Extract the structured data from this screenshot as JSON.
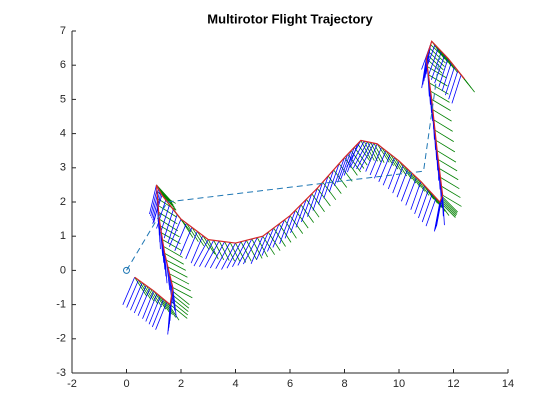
{
  "chart_data": {
    "type": "trajectory",
    "title": "Multirotor Flight Trajectory",
    "xlim": [
      -2,
      14
    ],
    "ylim": [
      -3,
      7
    ],
    "xticks": [
      -2,
      0,
      2,
      4,
      6,
      8,
      10,
      12,
      14
    ],
    "yticks": [
      -3,
      -2,
      -1,
      0,
      1,
      2,
      3,
      4,
      5,
      6,
      7
    ],
    "waypoints": {
      "color": "#1f77b4",
      "x": [
        0,
        1.5,
        10.9,
        11.5
      ],
      "y": [
        0,
        2.0,
        2.9,
        6.3
      ]
    },
    "trajectory": {
      "color": "#d62728",
      "x": [
        0.3,
        1.0,
        1.6,
        1.7,
        1.4,
        1.2,
        1.1,
        1.3,
        2.0,
        3.0,
        4.0,
        5.0,
        6.0,
        7.0,
        8.0,
        8.6,
        9.2,
        10.0,
        10.8,
        11.5,
        11.6,
        11.4,
        11.2,
        11.0,
        11.2,
        11.8,
        12.4
      ],
      "y": [
        -0.2,
        -0.6,
        -1.0,
        -0.5,
        0.5,
        1.5,
        2.5,
        2.2,
        1.5,
        0.9,
        0.8,
        1.0,
        1.6,
        2.4,
        3.3,
        3.8,
        3.7,
        3.2,
        2.6,
        2.0,
        2.2,
        3.5,
        5.0,
        6.2,
        6.7,
        6.2,
        5.6
      ]
    },
    "body_z_color": "#0000ff",
    "body_x_color": "#008000"
  }
}
